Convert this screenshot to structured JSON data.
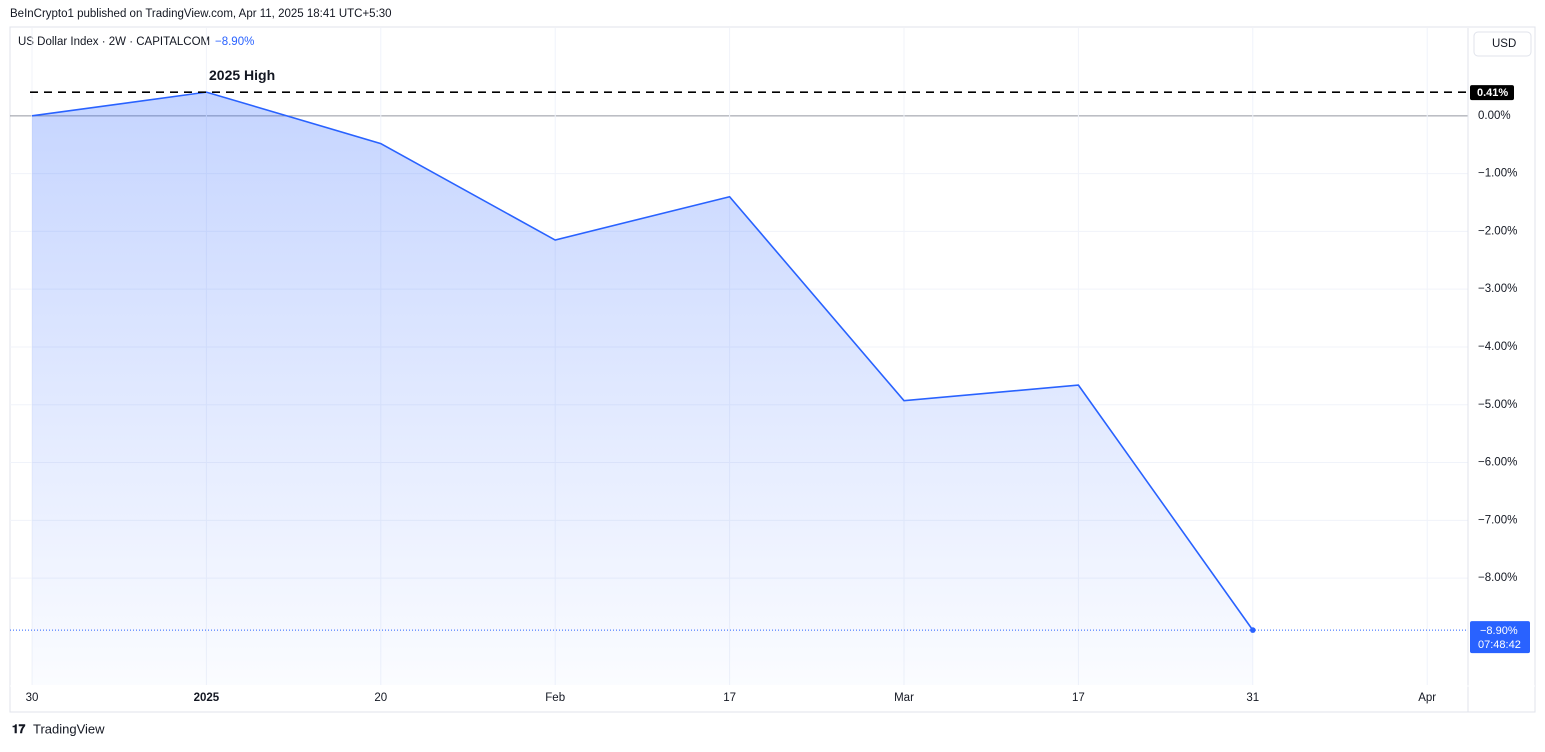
{
  "header": {
    "published": "BeInCrypto1 published on TradingView.com, Apr 11, 2025 18:41 UTC+5:30",
    "symbol": "US Dollar Index · 2W · CAPITALCOM",
    "change": "−8.90%",
    "currency": "USD",
    "brand": "TradingView"
  },
  "chart_data": {
    "type": "line",
    "area": true,
    "color": "#2962ff",
    "grid": true,
    "categories": [
      "30",
      "2025",
      "20",
      "Feb",
      "17",
      "Mar",
      "17",
      "31",
      "Apr"
    ],
    "values": [
      0.0,
      0.41,
      -0.48,
      -2.15,
      -1.4,
      -4.93,
      -4.66,
      -8.9,
      null
    ],
    "ylim": [
      -9.85,
      1.52
    ],
    "yticks": [
      {
        "value": 0,
        "label": "0.00%"
      },
      {
        "value": -1,
        "label": "−1.00%"
      },
      {
        "value": -2,
        "label": "−2.00%"
      },
      {
        "value": -3,
        "label": "−3.00%"
      },
      {
        "value": -4,
        "label": "−4.00%"
      },
      {
        "value": -5,
        "label": "−5.00%"
      },
      {
        "value": -6,
        "label": "−6.00%"
      },
      {
        "value": -7,
        "label": "−7.00%"
      },
      {
        "value": -8,
        "label": "−8.00%"
      }
    ],
    "reference_line": {
      "value": 0.41,
      "label": "0.41%",
      "annotation": "2025 High"
    },
    "last_value": {
      "value": -8.9,
      "label": "−8.90%",
      "countdown": "07:48:42"
    }
  }
}
